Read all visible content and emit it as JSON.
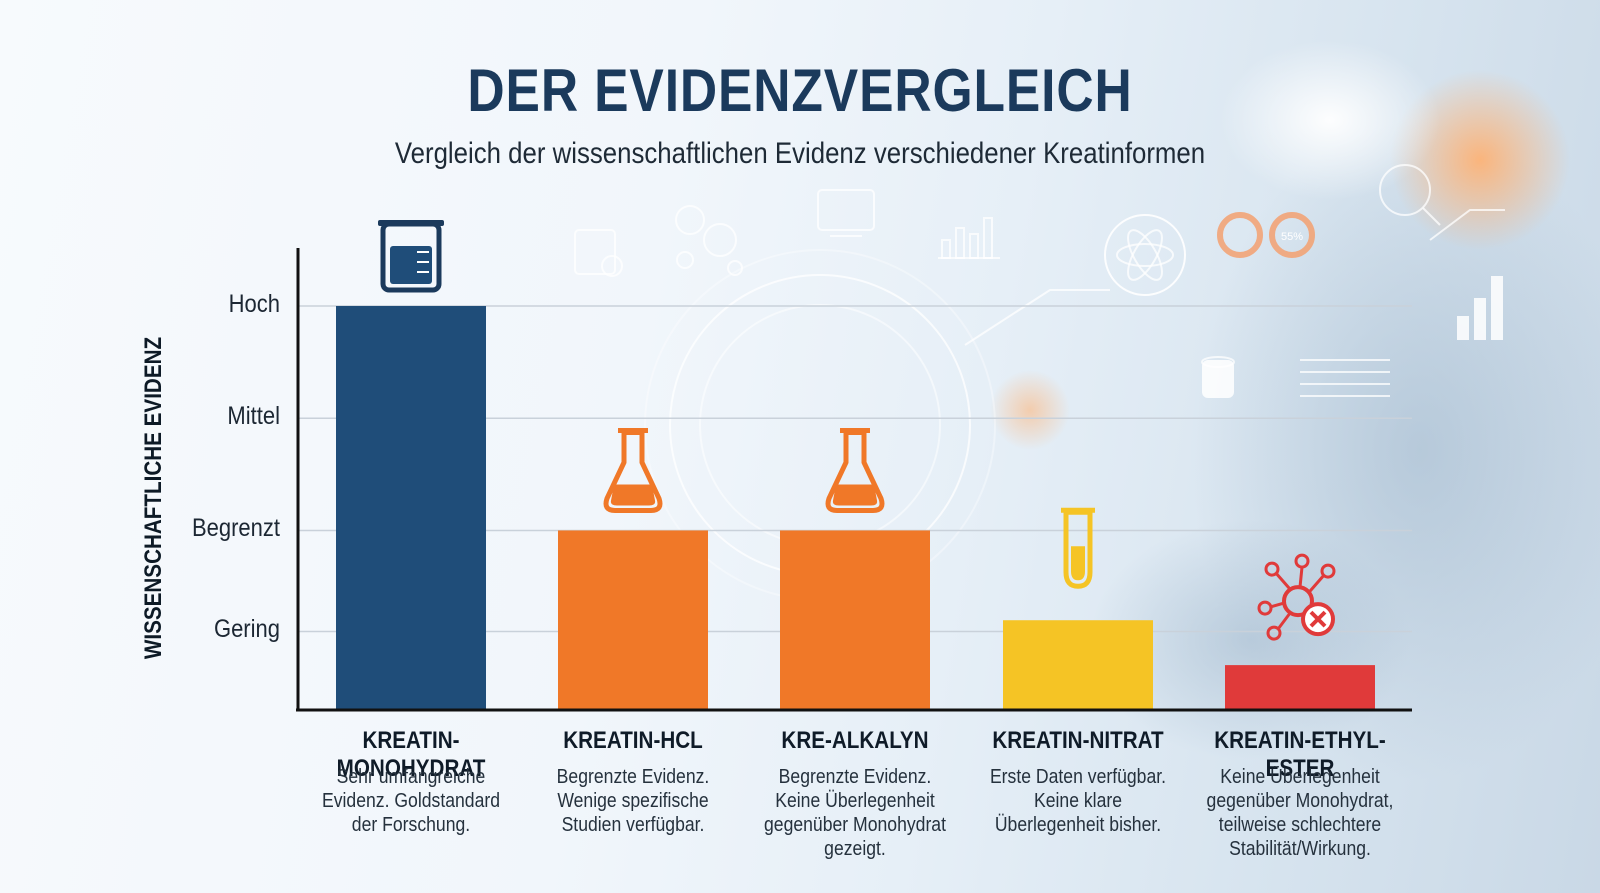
{
  "title": "DER EVIDENZVERGLEICH",
  "subtitle": "Vergleich der wissenschaftlichen Evidenz verschiedener Kreatinformen",
  "colors": {
    "navy": "#1f4d79",
    "orange": "#f07828",
    "yellow": "#f5c425",
    "red": "#e03a3a",
    "title": "#1b3a5c"
  },
  "chart_data": {
    "type": "bar",
    "ylabel": "WISSENSCHAFTLICHE EVIDENZ",
    "xlabel": "",
    "y_ticks": [
      "Gering",
      "Mittel",
      "Begrenzt",
      "Hoch"
    ],
    "y_tick_order_bottom_to_top": [
      "Gering",
      "Begrenzt",
      "Mittel",
      "Hoch"
    ],
    "ylim": [
      0,
      3.6
    ],
    "grid": true,
    "categories": [
      "KREATIN-MONOHYDRAT",
      "KREATIN-HCL",
      "KRE-ALKALYN",
      "KREATIN-NITRAT",
      "KREATIN-ETHYL-ESTER"
    ],
    "values": [
      3.6,
      1.6,
      1.6,
      0.8,
      0.4
    ],
    "bar_colors": [
      "#1f4d79",
      "#f07828",
      "#f07828",
      "#f5c425",
      "#e03a3a"
    ],
    "bar_icons": [
      "beaker-icon",
      "flask-icon",
      "flask-icon",
      "test-tube-icon",
      "molecule-x-icon"
    ],
    "descriptions": [
      "Sehr umfangreiche Evidenz. Goldstandard der Forschung.",
      "Begrenzte Evidenz. Wenige spezifische Studien verfügbar.",
      "Begrenzte Evidenz. Keine Überlegenheit gegenüber Monohydrat gezeigt.",
      "Erste Daten verfügbar. Keine klare Überlegenheit bisher.",
      "Keine Überlegenheit gegenüber Monohydrat, teilweise schlechtere Stabilität/Wirkung."
    ],
    "descriptions_lines": [
      [
        "Sehr umfangreiche",
        "Evidenz. Goldstandard",
        "der Forschung."
      ],
      [
        "Begrenzte Evidenz.",
        "Wenige spezifische",
        "Studien verfügbar."
      ],
      [
        "Begrenzte Evidenz.",
        "Keine Überlegenheit",
        "gegenüber Monohydrat",
        "gezeigt."
      ],
      [
        "Erste Daten verfügbar.",
        "Keine klare",
        "Überlegenheit bisher."
      ],
      [
        "Keine Überlegenheit",
        "gegenüber Monohydrat,",
        "teilweise schlechtere",
        "Stabilität/Wirkung."
      ]
    ]
  },
  "decor": {
    "pie_percent": "55%"
  }
}
